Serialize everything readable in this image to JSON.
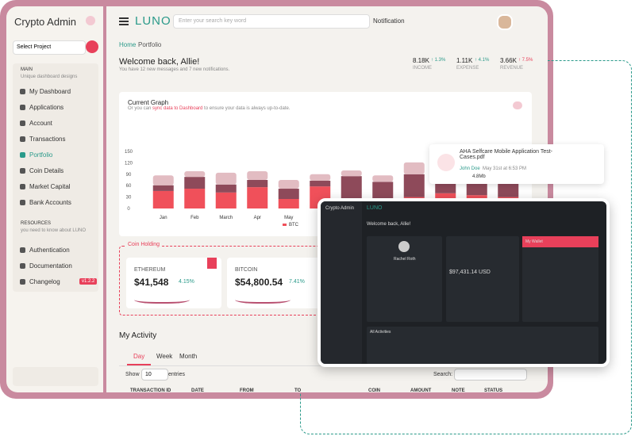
{
  "sidebar": {
    "title": "Crypto Admin",
    "project_select": "Select Project",
    "main_heading": "MAIN",
    "main_sub": "Unique dashboard designs",
    "items": [
      "My Dashboard",
      "Applications",
      "Account",
      "Transactions",
      "Portfolio",
      "Coin Details",
      "Market Capital",
      "Bank Accounts"
    ],
    "resources_heading": "RESOURCES",
    "resources_sub": "you need to know about LUNO",
    "resource_items": [
      "Authentication",
      "Documentation",
      "Changelog"
    ],
    "changelog_badge": "v1.2.2"
  },
  "topbar": {
    "logo": "LUNO",
    "search_placeholder": "Enter your search key word",
    "notification": "Notification"
  },
  "breadcrumb": [
    "Home",
    "Portfolio"
  ],
  "welcome": {
    "title": "Welcome back, Allie!",
    "subtitle": "You have 12 new messages and 7 new notifications."
  },
  "stats": [
    {
      "value": "8.18K",
      "change": "↑ 1.3%",
      "label": "INCOME"
    },
    {
      "value": "1.11K",
      "change": "↑ 4.1%",
      "label": "EXPENSE"
    },
    {
      "value": "3.66K",
      "change": "↑ 7.5%",
      "label": "REVENUE"
    }
  ],
  "current_graph": {
    "title": "Current Graph",
    "subtitle_pre": "Or you can ",
    "subtitle_link": "sync data to Dashboard",
    "subtitle_post": " to ensure your data is always up-to-date.",
    "chart_data": {
      "type": "bar",
      "stacked": true,
      "categories": [
        "Jan",
        "Feb",
        "March",
        "Apr",
        "May",
        null,
        null,
        null,
        null,
        null,
        null,
        null
      ],
      "series": [
        {
          "name": "BTC",
          "color": "#f0505a",
          "values": [
            46,
            52,
            42,
            56,
            25,
            58,
            25,
            25,
            30,
            40,
            35,
            30
          ]
        },
        {
          "color": "#8e4a5a",
          "values": [
            15,
            31,
            21,
            19,
            27,
            15,
            60,
            45,
            60,
            40,
            40,
            35
          ]
        },
        {
          "color": "#e2bcc2",
          "values": [
            26,
            15,
            31,
            23,
            23,
            17,
            15,
            17,
            31,
            26,
            25,
            18
          ]
        }
      ],
      "ylim": [
        0,
        150
      ],
      "yticks": [
        0,
        30,
        60,
        90,
        120,
        150
      ]
    }
  },
  "coin_holding": {
    "title": "Coin Holding",
    "coins": [
      {
        "name": "ETHEREUM",
        "value": "$41,548",
        "change": "4.15%"
      },
      {
        "name": "BITCOIN",
        "value": "$54,800.54",
        "change": "7.41%"
      }
    ]
  },
  "activity": {
    "title": "My Activity",
    "tabs": [
      "Day",
      "Week",
      "Month"
    ],
    "show": "Show",
    "entries_value": "10",
    "entries": "entries",
    "search": "Search:",
    "columns": [
      "TRANSACTION ID",
      "DATE",
      "FROM",
      "TO",
      "COIN",
      "AMOUNT",
      "NOTE",
      "STATUS"
    ]
  },
  "file_popup": {
    "name": "AHA Selfcare Mobile Application Test-Cases.pdf",
    "author": "John Doe",
    "date": "May 31st at 6:53 PM",
    "size": "4.8Mb"
  },
  "inset": {
    "title": "Crypto Admin",
    "logo": "LUNO",
    "welcome": "Welcome back, Allie!",
    "profile": "Rachel Roth",
    "balance": "$97,431.14 USD",
    "wallet": "My Wallet",
    "activities": "All Activities"
  }
}
